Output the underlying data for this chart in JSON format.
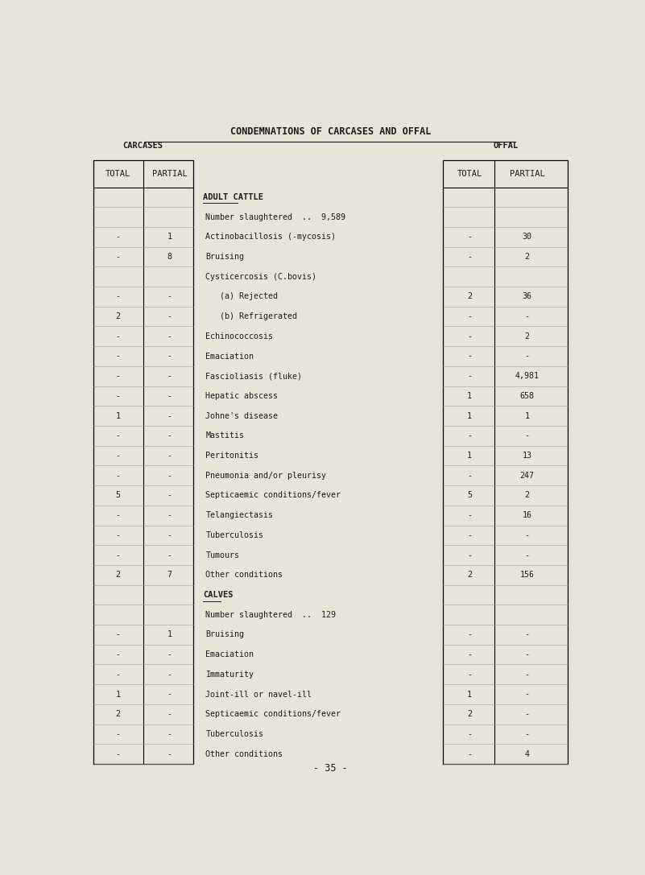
{
  "title": "CONDEMNATIONS OF CARCASES AND OFFAL",
  "page_number": "- 35 -",
  "background_color": "#e8e4d8",
  "text_color": "#1a1a1a",
  "rows": [
    {
      "label": "ADULT CATTLE",
      "type": "section",
      "carc_total": "",
      "carc_partial": "",
      "offal_total": "",
      "offal_partial": ""
    },
    {
      "label": "Number slaughtered  ..  9,589",
      "type": "number",
      "carc_total": "",
      "carc_partial": "",
      "offal_total": "",
      "offal_partial": ""
    },
    {
      "label": "Actinobacillosis (-mycosis)",
      "type": "data",
      "carc_total": "-",
      "carc_partial": "1",
      "offal_total": "-",
      "offal_partial": "30"
    },
    {
      "label": "Bruising",
      "type": "data",
      "carc_total": "-",
      "carc_partial": "8",
      "offal_total": "-",
      "offal_partial": "2"
    },
    {
      "label": "Cysticercosis (C.bovis)",
      "type": "data",
      "carc_total": "",
      "carc_partial": "",
      "offal_total": "",
      "offal_partial": ""
    },
    {
      "label": "   (a) Rejected",
      "type": "data",
      "carc_total": "-",
      "carc_partial": "-",
      "offal_total": "2",
      "offal_partial": "36"
    },
    {
      "label": "   (b) Refrigerated",
      "type": "data",
      "carc_total": "2",
      "carc_partial": "-",
      "offal_total": "-",
      "offal_partial": "-"
    },
    {
      "label": "Echinococcosis",
      "type": "data",
      "carc_total": "-",
      "carc_partial": "-",
      "offal_total": "-",
      "offal_partial": "2"
    },
    {
      "label": "Emaciation",
      "type": "data",
      "carc_total": "-",
      "carc_partial": "-",
      "offal_total": "-",
      "offal_partial": "-"
    },
    {
      "label": "Fascioliasis (fluke)",
      "type": "data",
      "carc_total": "-",
      "carc_partial": "-",
      "offal_total": "-",
      "offal_partial": "4,981"
    },
    {
      "label": "Hepatic abscess",
      "type": "data",
      "carc_total": "-",
      "carc_partial": "-",
      "offal_total": "1",
      "offal_partial": "658"
    },
    {
      "label": "Johne's disease",
      "type": "data",
      "carc_total": "1",
      "carc_partial": "-",
      "offal_total": "1",
      "offal_partial": "1"
    },
    {
      "label": "Mastitis",
      "type": "data",
      "carc_total": "-",
      "carc_partial": "-",
      "offal_total": "-",
      "offal_partial": "-"
    },
    {
      "label": "Peritonitis",
      "type": "data",
      "carc_total": "-",
      "carc_partial": "-",
      "offal_total": "1",
      "offal_partial": "13"
    },
    {
      "label": "Pneumonia and/or pleurisy",
      "type": "data",
      "carc_total": "-",
      "carc_partial": "-",
      "offal_total": "-",
      "offal_partial": "247"
    },
    {
      "label": "Septicaemic conditions/fever",
      "type": "data",
      "carc_total": "5",
      "carc_partial": "-",
      "offal_total": "5",
      "offal_partial": "2"
    },
    {
      "label": "Telangiectasis",
      "type": "data",
      "carc_total": "-",
      "carc_partial": "-",
      "offal_total": "-",
      "offal_partial": "16"
    },
    {
      "label": "Tuberculosis",
      "type": "data",
      "carc_total": "-",
      "carc_partial": "-",
      "offal_total": "-",
      "offal_partial": "-"
    },
    {
      "label": "Tumours",
      "type": "data",
      "carc_total": "-",
      "carc_partial": "-",
      "offal_total": "-",
      "offal_partial": "-"
    },
    {
      "label": "Other conditions",
      "type": "data",
      "carc_total": "2",
      "carc_partial": "7",
      "offal_total": "2",
      "offal_partial": "156"
    },
    {
      "label": "CALVES",
      "type": "section",
      "carc_total": "",
      "carc_partial": "",
      "offal_total": "",
      "offal_partial": ""
    },
    {
      "label": "Number slaughtered  ..  129",
      "type": "number",
      "carc_total": "",
      "carc_partial": "",
      "offal_total": "",
      "offal_partial": ""
    },
    {
      "label": "Bruising",
      "type": "data",
      "carc_total": "-",
      "carc_partial": "1",
      "offal_total": "-",
      "offal_partial": "-"
    },
    {
      "label": "Emaciation",
      "type": "data",
      "carc_total": "-",
      "carc_partial": "-",
      "offal_total": "-",
      "offal_partial": "-"
    },
    {
      "label": "Immaturity",
      "type": "data",
      "carc_total": "-",
      "carc_partial": "-",
      "offal_total": "-",
      "offal_partial": "-"
    },
    {
      "label": "Joint-ill or navel-ill",
      "type": "data",
      "carc_total": "1",
      "carc_partial": "-",
      "offal_total": "1",
      "offal_partial": "-"
    },
    {
      "label": "Septicaemic conditions/fever",
      "type": "data",
      "carc_total": "2",
      "carc_partial": "-",
      "offal_total": "2",
      "offal_partial": "-"
    },
    {
      "label": "Tuberculosis",
      "type": "data",
      "carc_total": "-",
      "carc_partial": "-",
      "offal_total": "-",
      "offal_partial": "-"
    },
    {
      "label": "Other conditions",
      "type": "data",
      "carc_total": "-",
      "carc_partial": "-",
      "offal_total": "-",
      "offal_partial": "4"
    }
  ]
}
